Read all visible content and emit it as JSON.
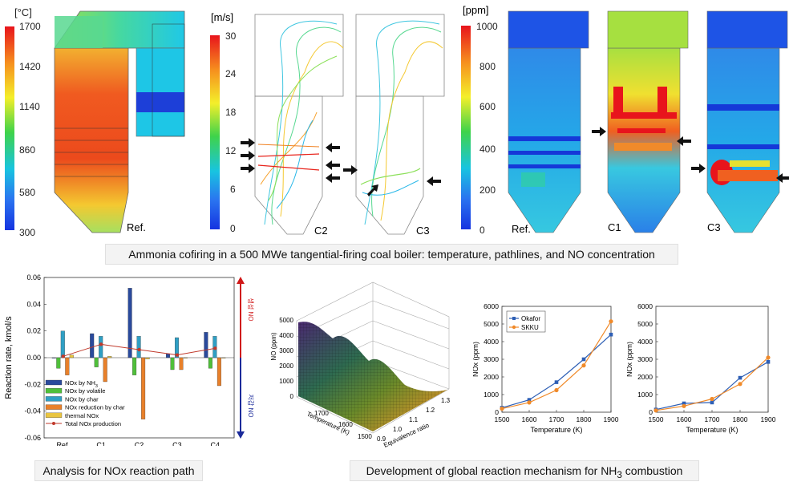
{
  "top": {
    "temperature_scale": {
      "unit": "[°C]",
      "ticks": [
        "1700",
        "1420",
        "1140",
        "860",
        "580",
        "300"
      ]
    },
    "velocity_scale": {
      "unit": "[m/s]",
      "ticks": [
        "30",
        "24",
        "18",
        "12",
        "6",
        "0"
      ]
    },
    "no_scale": {
      "unit": "[ppm]",
      "ticks": [
        "1000",
        "800",
        "600",
        "400",
        "200",
        "0"
      ]
    },
    "case_labels": {
      "temp_ref": "Ref.",
      "path_c2": "C2",
      "path_c3": "C3",
      "no_ref": "Ref.",
      "no_c1": "C1",
      "no_c3": "C3"
    },
    "caption": "Ammonia cofiring in a 500 MWe tangential-firing coal boiler: temperature, pathlines, and NO concentration"
  },
  "bottom": {
    "caption_left": "Analysis for NOx reaction path",
    "caption_right_pre": "Development of global reaction mechanism for NH",
    "caption_right_sub": "3",
    "caption_right_post": " combustion"
  },
  "chart_data": [
    {
      "type": "bar",
      "ylabel": "Reaction rate, kmol/s",
      "ylim": [
        -0.06,
        0.06
      ],
      "yticks": [
        "0.06",
        "0.04",
        "0.02",
        "0.00",
        "-0.02",
        "-0.04",
        "-0.06"
      ],
      "categories": [
        "Ref.",
        "C1",
        "C2",
        "C3",
        "C4"
      ],
      "arrow_up_label": "생성 NO",
      "arrow_down_label": "저감 NO",
      "series": [
        {
          "name": "NOx by NH3",
          "color": "#2a4a9c",
          "values": [
            0.0,
            0.018,
            0.052,
            0.003,
            0.019
          ]
        },
        {
          "name": "NOx by volatile",
          "color": "#4fbf3a",
          "values": [
            -0.008,
            -0.007,
            -0.013,
            -0.009,
            -0.008
          ]
        },
        {
          "name": "NOx by char",
          "color": "#2f9fc4",
          "values": [
            0.02,
            0.016,
            0.016,
            0.015,
            0.016
          ]
        },
        {
          "name": "NOx reduction by char",
          "color": "#e8802a",
          "values": [
            -0.013,
            -0.018,
            -0.046,
            -0.009,
            -0.021
          ]
        },
        {
          "name": "thermal NOx",
          "color": "#e9c541",
          "values": [
            0.002,
            0.001,
            -0.001,
            0.0,
            0.0
          ]
        }
      ],
      "line": {
        "name": "Total NOx production",
        "color": "#c0392b",
        "values": [
          0.001,
          0.01,
          0.006,
          0.002,
          0.007
        ]
      },
      "legend_labels": [
        "NOx by NH",
        "NOx by volatile",
        "NOx by char",
        "NOx reduction by char",
        "thermal NOx",
        "Total NOx production"
      ]
    },
    {
      "type": "surface",
      "zlabel": "NO (ppm)",
      "zticks": [
        "5000",
        "4000",
        "3000",
        "2000",
        "1000",
        "0"
      ],
      "xlabel": "Temperature (K)",
      "xticks": [
        "1700",
        "1600",
        "1500"
      ],
      "ylabel": "Equivalence ratio",
      "yticks": [
        "0.9",
        "1.0",
        "1.1",
        "1.2",
        "1.3"
      ]
    },
    {
      "type": "line",
      "xlabel": "Temperature (K)",
      "ylabel": "NOx (ppm)",
      "xlim": [
        1500,
        1900
      ],
      "ylim": [
        0,
        6000
      ],
      "xticks": [
        "1500",
        "1600",
        "1700",
        "1800",
        "1900"
      ],
      "yticks": [
        "0",
        "1000",
        "2000",
        "3000",
        "4000",
        "5000",
        "6000"
      ],
      "x": [
        1500,
        1600,
        1700,
        1800,
        1900
      ],
      "legend": "top-left",
      "series": [
        {
          "name": "Okafor",
          "color": "#2e5fb5",
          "values": [
            250,
            700,
            1700,
            3000,
            4400
          ]
        },
        {
          "name": "SKKU",
          "color": "#f08a2a",
          "values": [
            200,
            550,
            1250,
            2650,
            5150
          ]
        }
      ]
    },
    {
      "type": "line",
      "xlabel": "Temperature (K)",
      "ylabel": "NOx (ppm)",
      "xlim": [
        1500,
        1900
      ],
      "ylim": [
        0,
        6000
      ],
      "xticks": [
        "1500",
        "1600",
        "1700",
        "1800",
        "1900"
      ],
      "yticks": [
        "0",
        "1000",
        "2000",
        "3000",
        "4000",
        "5000",
        "6000"
      ],
      "x": [
        1500,
        1600,
        1700,
        1800,
        1900
      ],
      "series": [
        {
          "name": "",
          "color": "#2e5fb5",
          "values": [
            150,
            500,
            550,
            1950,
            2850
          ]
        },
        {
          "name": "",
          "color": "#f08a2a",
          "values": [
            100,
            350,
            750,
            1600,
            3100
          ]
        }
      ]
    }
  ]
}
